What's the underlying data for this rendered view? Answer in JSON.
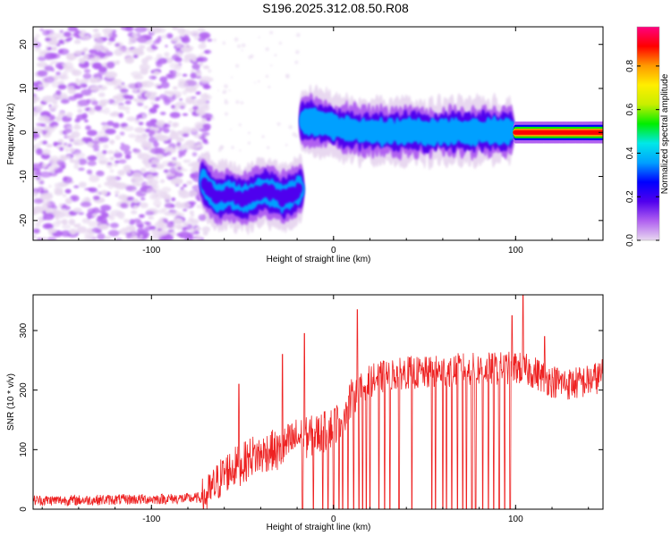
{
  "title": "S196.2025.312.08.50.R08",
  "colors": {
    "snr_line": "#ee2222",
    "axis": "#000000",
    "colormap": [
      "#e8d8f0",
      "#b060f0",
      "#5000ee",
      "#0000ff",
      "#00a0ff",
      "#00e8e8",
      "#00ee00",
      "#c8ee00",
      "#ffee00",
      "#ff9900",
      "#ff0000",
      "#ff0080"
    ]
  },
  "chart_data": [
    {
      "type": "heatmap",
      "title": "S196.2025.312.08.50.R08",
      "xlabel": "Height of straight line (km)",
      "ylabel": "Frequency (Hz)",
      "xlim": [
        -165,
        148
      ],
      "ylim": [
        -24.5,
        24
      ],
      "x_ticks": [
        "-100",
        "0",
        "100"
      ],
      "y_ticks": [
        "-20",
        "-10",
        "0",
        "10",
        "20"
      ],
      "noise_region_x": [
        -165,
        -72
      ],
      "ridges": [
        {
          "x": [
            -72,
            -68,
            -63,
            -58,
            -53,
            -48,
            -43,
            -38,
            -33,
            -28,
            -23,
            -18
          ],
          "y": [
            -11,
            -13,
            -15,
            -14,
            -15,
            -15,
            -14,
            -13,
            -14,
            -15,
            -14,
            -13
          ],
          "amplitude": 0.25
        },
        {
          "x": [
            -17,
            -10,
            0,
            10,
            20,
            30,
            40,
            50,
            60,
            70,
            80,
            90,
            98
          ],
          "y": [
            2.5,
            2.5,
            1.5,
            0.5,
            0.2,
            0.2,
            0.2,
            0.2,
            0.2,
            0.2,
            0.2,
            0.2,
            0.5
          ],
          "amplitude": 0.42
        },
        {
          "x": [
            100,
            110,
            120,
            130,
            140,
            148
          ],
          "y": [
            0,
            0,
            0,
            0,
            0,
            0
          ],
          "amplitude": 0.95
        }
      ],
      "colorbar": {
        "label": "Normalized spectral amplitude",
        "range": [
          0,
          0.98
        ],
        "ticks": [
          "0.0",
          "0.2",
          "0.4",
          "0.6",
          "0.8"
        ]
      }
    },
    {
      "type": "line",
      "xlabel": "Height of straight line (km)",
      "ylabel": "SNR (10 * v/v)",
      "xlim": [
        -165,
        148
      ],
      "ylim": [
        0,
        360
      ],
      "x_ticks": [
        "-100",
        "0",
        "100"
      ],
      "y_ticks": [
        "0",
        "100",
        "200",
        "300"
      ],
      "series": [
        {
          "x": [
            -165,
            -140,
            -120,
            -100,
            -80,
            -70,
            -65,
            -60,
            -55,
            -50,
            -45,
            -40,
            -35,
            -30,
            -25,
            -20,
            -15,
            -10,
            -5,
            0,
            5,
            10,
            15,
            20,
            25,
            30,
            40,
            50,
            60,
            70,
            80,
            90,
            100,
            110,
            120,
            130,
            140,
            148
          ],
          "y": [
            15,
            15,
            16,
            17,
            18,
            20,
            40,
            60,
            70,
            75,
            90,
            90,
            100,
            95,
            110,
            120,
            120,
            125,
            130,
            140,
            160,
            185,
            200,
            215,
            220,
            225,
            230,
            228,
            232,
            235,
            235,
            236,
            238,
            230,
            215,
            210,
            215,
            225
          ],
          "dropouts_x": [
            -17,
            -11,
            -6,
            -3,
            0,
            3,
            5,
            8,
            11,
            14,
            16,
            18,
            20,
            25,
            28,
            31,
            36,
            43,
            54,
            56,
            60,
            62,
            65,
            68,
            71,
            73,
            76,
            78,
            82,
            85,
            88,
            91,
            94,
            97
          ],
          "spikes": [
            [
              -52,
              210
            ],
            [
              -28,
              260
            ],
            [
              -16,
              295
            ],
            [
              13,
              335
            ],
            [
              98,
              325
            ],
            [
              104,
              362
            ],
            [
              116,
              290
            ]
          ]
        }
      ]
    }
  ]
}
